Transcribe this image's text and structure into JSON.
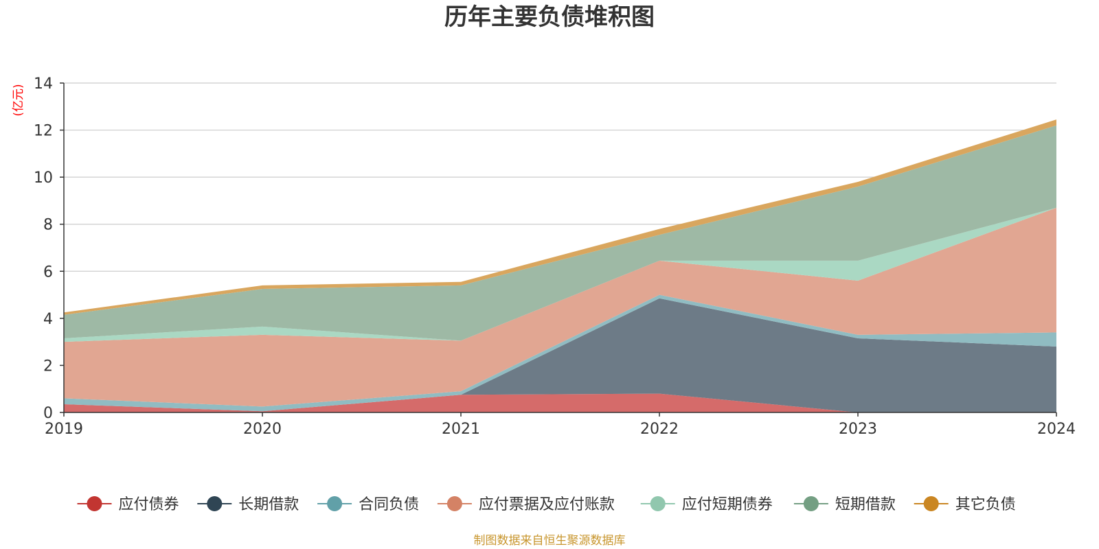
{
  "chart_data": {
    "type": "area",
    "title": "历年主要负债堆积图",
    "unit_label": "(亿元)",
    "categories": [
      "2019",
      "2020",
      "2021",
      "2022",
      "2023",
      "2024"
    ],
    "ylim": [
      0,
      14
    ],
    "yticks": [
      0,
      2,
      4,
      6,
      8,
      10,
      12,
      14
    ],
    "grid": true,
    "legend_position": "bottom",
    "stacked": true,
    "series": [
      {
        "name": "应付债券",
        "color": "#c23531",
        "area_color": "#d56b6a",
        "values": [
          0.35,
          0.05,
          0.75,
          0.8,
          0.0,
          0.0
        ]
      },
      {
        "name": "长期借款",
        "color": "#2f4554",
        "area_color": "#6d7b87",
        "values": [
          0.0,
          0.0,
          0.0,
          4.05,
          3.15,
          2.8
        ]
      },
      {
        "name": "合同负债",
        "color": "#61a0a8",
        "area_color": "#90bcc2",
        "values": [
          0.25,
          0.2,
          0.15,
          0.15,
          0.15,
          0.6
        ]
      },
      {
        "name": "应付票据及应付账款",
        "color": "#d48265",
        "area_color": "#e1a692",
        "values": [
          2.4,
          3.05,
          2.15,
          1.45,
          2.3,
          5.3
        ]
      },
      {
        "name": "应付短期债券",
        "color": "#91c7ae",
        "area_color": "#aad8c3",
        "values": [
          0.15,
          0.35,
          0.0,
          0.0,
          0.85,
          0.0
        ]
      },
      {
        "name": "短期借款",
        "color": "#749f83",
        "area_color": "#9eb9a5",
        "values": [
          1.0,
          1.6,
          2.35,
          1.1,
          3.15,
          3.5
        ]
      },
      {
        "name": "其它负债",
        "color": "#ca8622",
        "area_color": "#d9a65e",
        "values": [
          0.1,
          0.15,
          0.15,
          0.25,
          0.2,
          0.25
        ]
      }
    ]
  },
  "source_note": "制图数据来自恒生聚源数据库"
}
